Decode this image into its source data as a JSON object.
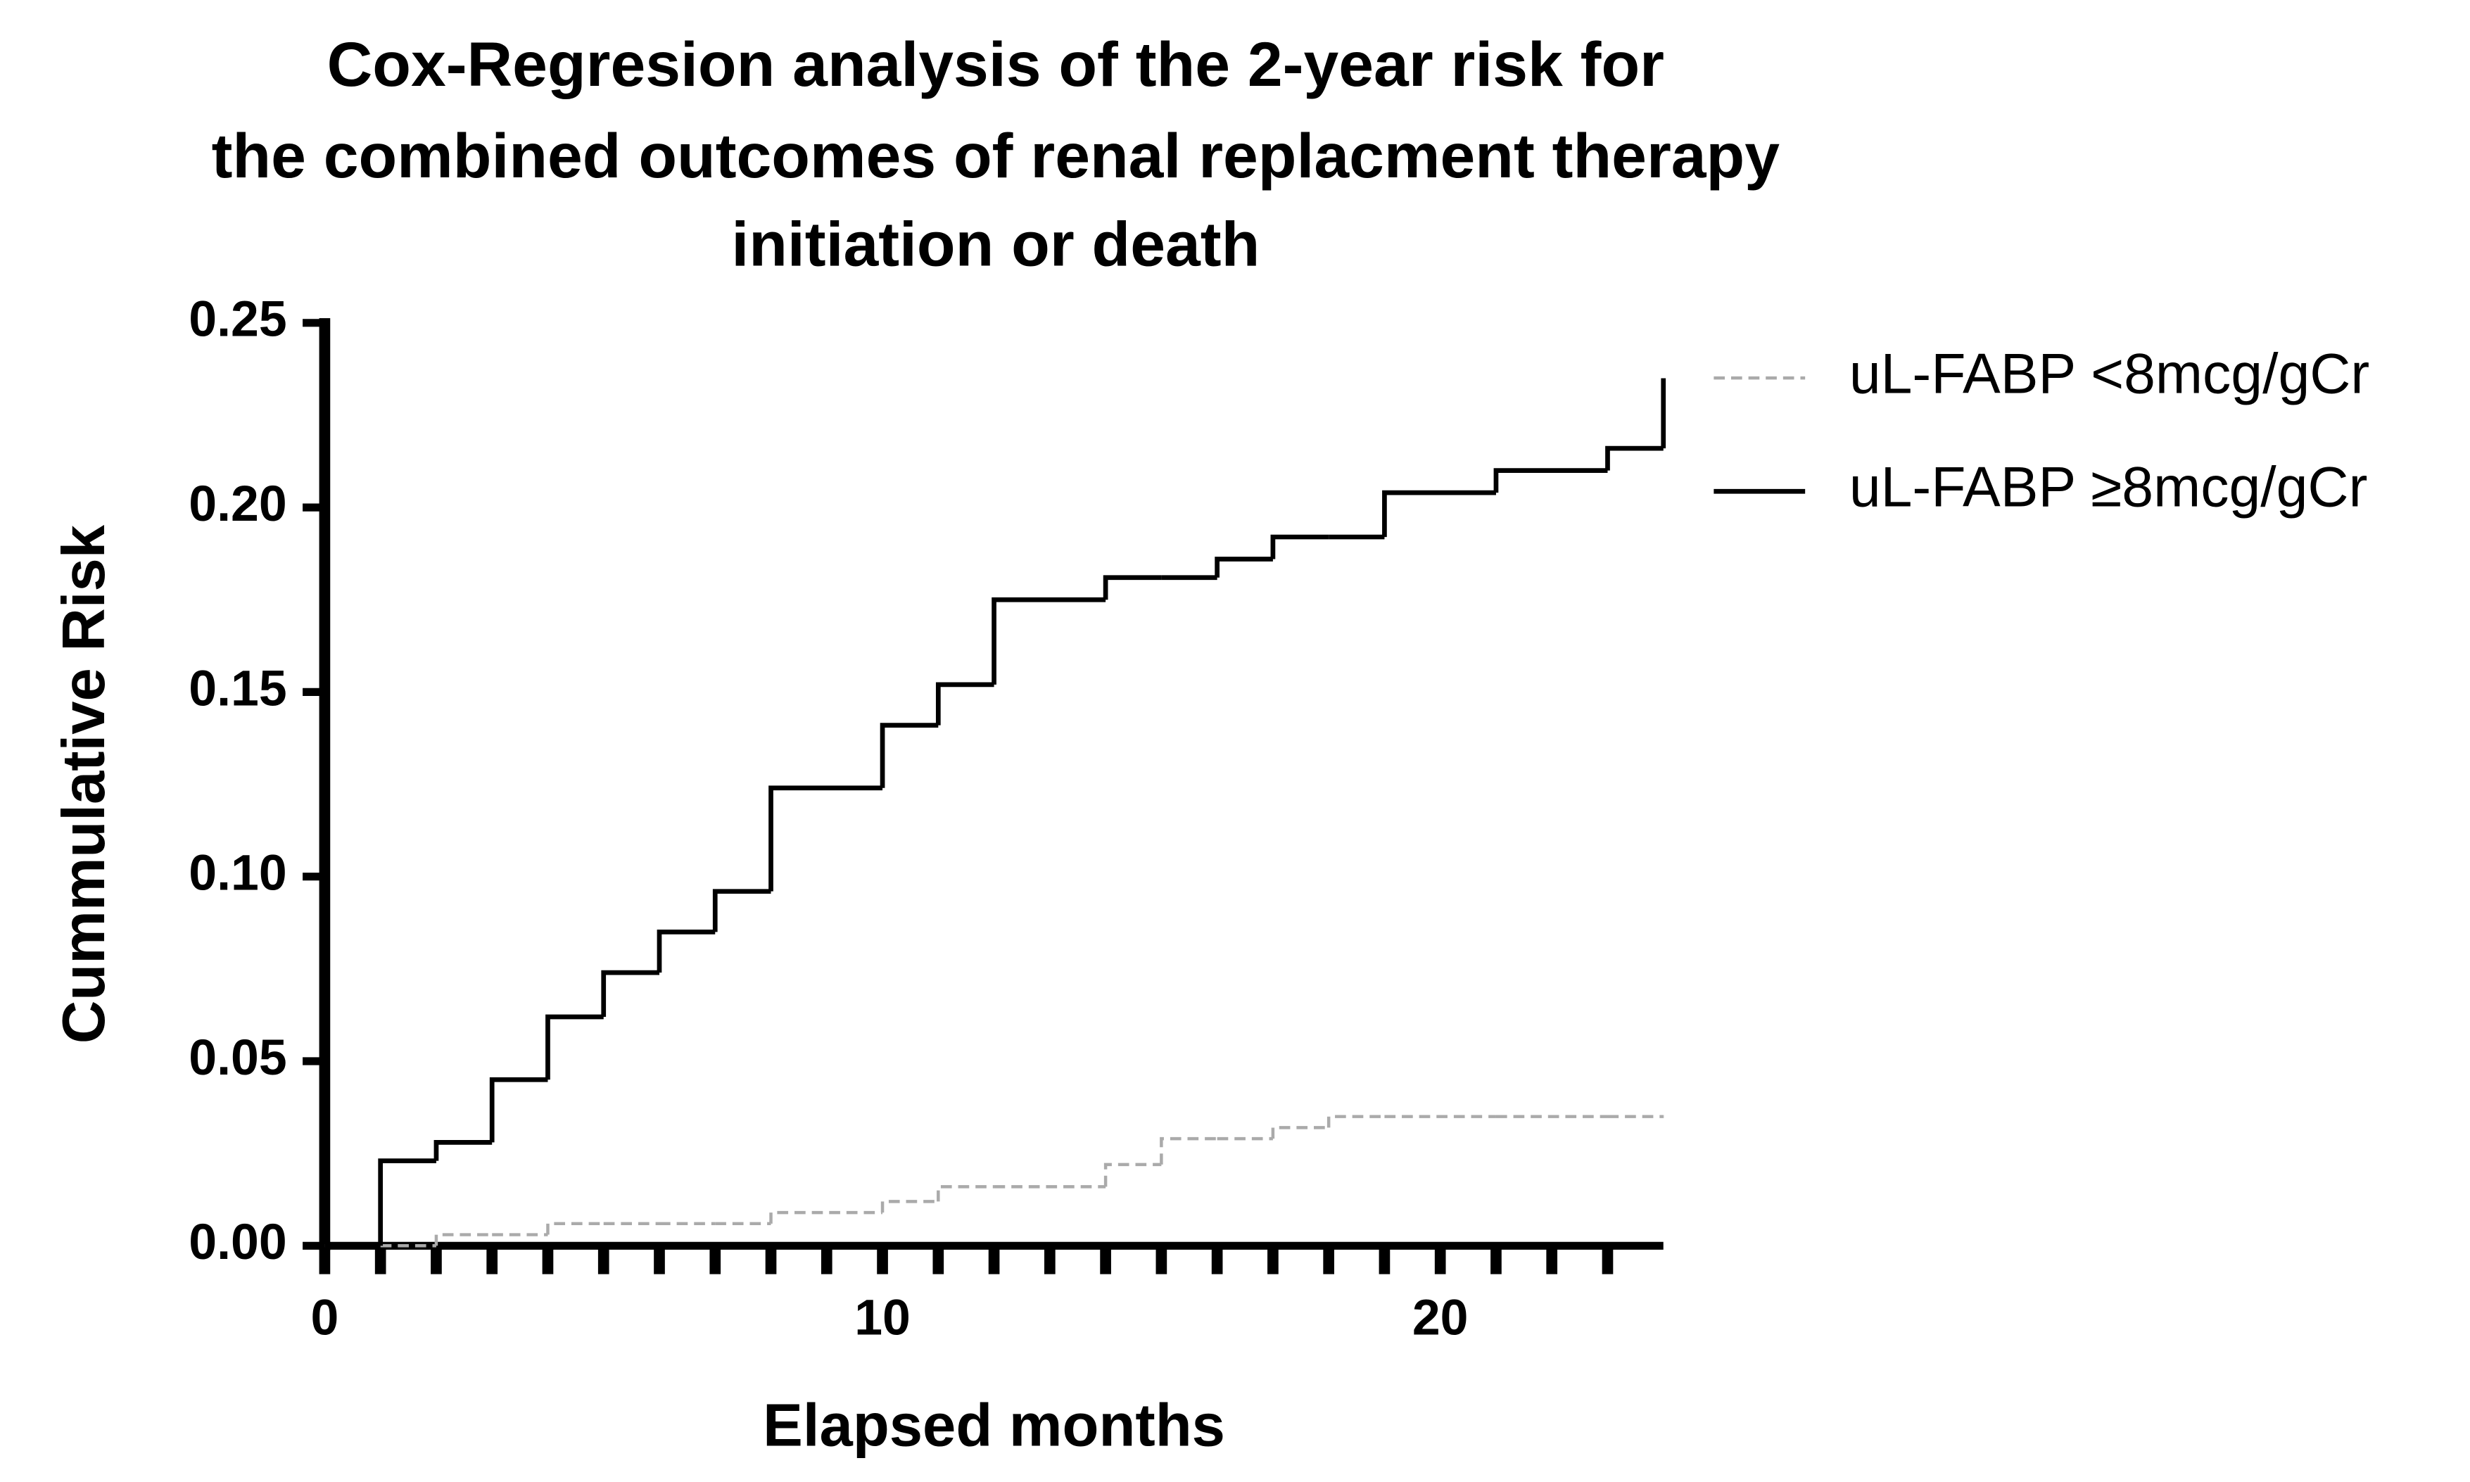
{
  "chart_data": {
    "type": "step",
    "title": [
      "Cox-Regresion analysis of the 2-year risk for",
      "the combined outcomes of renal replacment therapy",
      "initiation or death"
    ],
    "x_label": "Elapsed months",
    "y_label": "Cummulative Risk",
    "x": [
      0,
      1,
      2,
      3,
      4,
      5,
      6,
      7,
      8,
      10,
      11,
      12,
      14,
      15,
      16,
      17,
      18,
      19,
      21,
      23,
      24
    ],
    "series": [
      {
        "name": "uL-FABP <8mcg/gCr",
        "color": "#aaaaaa",
        "dashed": true,
        "values": [
          0,
          0,
          0.003,
          0.003,
          0.006,
          0.006,
          0.006,
          0.006,
          0.009,
          0.012,
          0.016,
          0.016,
          0.022,
          0.029,
          0.029,
          0.032,
          0.035,
          0.035,
          0.035,
          0.035,
          0.035
        ]
      },
      {
        "name": "uL-FABP ≥8mcg/gCr",
        "color": "#000000",
        "dashed": false,
        "values": [
          0,
          0.023,
          0.028,
          0.045,
          0.062,
          0.074,
          0.085,
          0.096,
          0.124,
          0.141,
          0.152,
          0.175,
          0.181,
          0.181,
          0.186,
          0.192,
          0.192,
          0.204,
          0.21,
          0.216,
          0.235
        ]
      }
    ],
    "xlim": [
      0,
      24
    ],
    "xticks": [
      0,
      10,
      20
    ],
    "xminorticks": [
      1,
      2,
      3,
      4,
      5,
      6,
      7,
      8,
      9,
      11,
      12,
      13,
      14,
      15,
      16,
      17,
      18,
      19,
      21,
      22,
      23
    ],
    "ylim": [
      0,
      0.25
    ],
    "yticks": [
      {
        "value": 0,
        "label": "0.00"
      },
      {
        "value": 0.05,
        "label": "0.05"
      },
      {
        "value": 0.1,
        "label": "0.10"
      },
      {
        "value": 0.15,
        "label": "0.15"
      },
      {
        "value": 0.2,
        "label": "0.20"
      },
      {
        "value": 0.25,
        "label": "0.25"
      }
    ],
    "legend": "right",
    "grid": false
  }
}
